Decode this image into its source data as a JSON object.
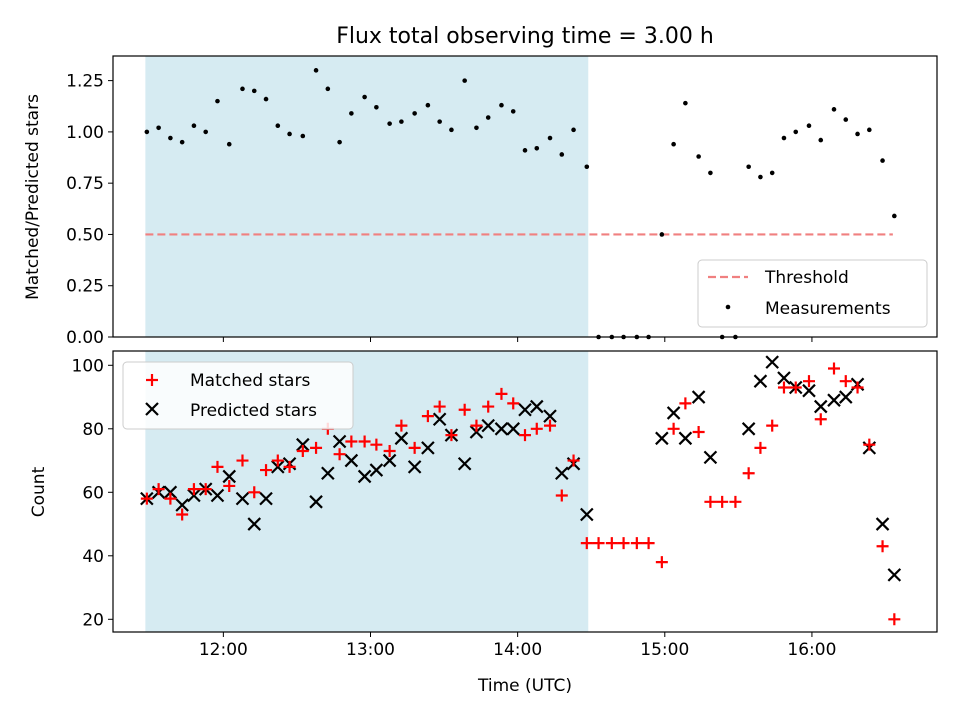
{
  "title": "Flux total observing time = 3.00 h",
  "chart_data": [
    {
      "type": "scatter",
      "ylabel": "Matched/Predicted stars",
      "xlabel": "",
      "xlim_hours": [
        11.25,
        16.85
      ],
      "ylim": [
        0,
        1.37
      ],
      "yticks": [
        0,
        0.25,
        0.5,
        0.75,
        1.0,
        1.25
      ],
      "ytick_labels": [
        "0.00",
        "0.25",
        "0.50",
        "0.75",
        "1.00",
        "1.25"
      ],
      "xticks_hours": [
        12,
        13,
        14,
        15,
        16
      ],
      "shaded_span_hours": [
        11.47,
        14.48
      ],
      "shade_color": "#add8e6",
      "legend_position": "lower right",
      "threshold": {
        "name": "Threshold",
        "value": 0.5,
        "x_range_hours": [
          11.47,
          16.55
        ],
        "color": "#f08080"
      },
      "measurements": {
        "name": "Measurements",
        "color": "#000000",
        "x_hours": [
          11.48,
          11.56,
          11.64,
          11.72,
          11.8,
          11.88,
          11.96,
          12.04,
          12.13,
          12.21,
          12.29,
          12.37,
          12.45,
          12.54,
          12.63,
          12.71,
          12.79,
          12.87,
          12.96,
          13.04,
          13.13,
          13.21,
          13.3,
          13.39,
          13.47,
          13.55,
          13.64,
          13.72,
          13.8,
          13.89,
          13.97,
          14.05,
          14.13,
          14.22,
          14.3,
          14.38,
          14.47,
          14.55,
          14.64,
          14.72,
          14.81,
          14.89,
          14.98,
          15.06,
          15.14,
          15.23,
          15.31,
          15.39,
          15.48,
          15.57,
          15.65,
          15.73,
          15.81,
          15.89,
          15.98,
          16.06,
          16.15,
          16.23,
          16.31,
          16.39,
          16.48,
          16.56
        ],
        "values": [
          1.0,
          1.02,
          0.97,
          0.95,
          1.03,
          1.0,
          1.15,
          0.94,
          1.21,
          1.2,
          1.16,
          1.03,
          0.99,
          0.98,
          1.3,
          1.21,
          0.95,
          1.09,
          1.17,
          1.12,
          1.04,
          1.05,
          1.09,
          1.13,
          1.05,
          1.01,
          1.25,
          1.02,
          1.07,
          1.13,
          1.1,
          0.91,
          0.92,
          0.97,
          0.89,
          1.01,
          0.83,
          0.0,
          0.0,
          0.0,
          0.0,
          0.0,
          0.5,
          0.94,
          1.14,
          0.88,
          0.8,
          0.0,
          0.0,
          0.83,
          0.78,
          0.8,
          0.97,
          1.0,
          1.03,
          0.96,
          1.11,
          1.06,
          0.99,
          1.01,
          0.86,
          0.59
        ]
      }
    },
    {
      "type": "scatter",
      "xlabel": "Time (UTC)",
      "ylabel": "Count",
      "xlim_hours": [
        11.25,
        16.85
      ],
      "ylim": [
        16,
        104.5
      ],
      "yticks": [
        20,
        40,
        60,
        80,
        100
      ],
      "ytick_labels": [
        "20",
        "40",
        "60",
        "80",
        "100"
      ],
      "xticks_hours": [
        12,
        13,
        14,
        15,
        16
      ],
      "xtick_labels": [
        "12:00",
        "13:00",
        "14:00",
        "15:00",
        "16:00"
      ],
      "shaded_span_hours": [
        11.47,
        14.48
      ],
      "shade_color": "#add8e6",
      "legend_position": "upper left",
      "series": [
        {
          "name": "Matched stars",
          "marker": "+",
          "color": "#ff0000",
          "x_hours": [
            11.48,
            11.56,
            11.64,
            11.72,
            11.8,
            11.88,
            11.96,
            12.04,
            12.13,
            12.21,
            12.29,
            12.37,
            12.45,
            12.54,
            12.63,
            12.71,
            12.79,
            12.87,
            12.96,
            13.04,
            13.13,
            13.21,
            13.3,
            13.39,
            13.47,
            13.55,
            13.64,
            13.72,
            13.8,
            13.89,
            13.97,
            14.05,
            14.13,
            14.22,
            14.3,
            14.38,
            14.47,
            14.55,
            14.64,
            14.72,
            14.81,
            14.89,
            14.98,
            15.06,
            15.14,
            15.23,
            15.31,
            15.39,
            15.48,
            15.57,
            15.65,
            15.73,
            15.81,
            15.89,
            15.98,
            16.06,
            16.15,
            16.23,
            16.31,
            16.39,
            16.48,
            16.56
          ],
          "values": [
            58,
            61,
            58,
            53,
            61,
            61,
            68,
            62,
            70,
            60,
            67,
            70,
            68,
            73,
            74,
            80,
            72,
            76,
            76,
            75,
            73,
            81,
            74,
            84,
            87,
            78,
            86,
            81,
            87,
            91,
            88,
            78,
            80,
            81,
            59,
            70,
            44,
            44,
            44,
            44,
            44,
            44,
            38,
            80,
            88,
            79,
            57,
            57,
            57,
            66,
            74,
            81,
            93,
            93,
            95,
            83,
            99,
            95,
            93,
            75,
            43,
            20
          ]
        },
        {
          "name": "Predicted stars",
          "marker": "x",
          "color": "#000000",
          "x_hours": [
            11.48,
            11.56,
            11.64,
            11.72,
            11.8,
            11.88,
            11.96,
            12.04,
            12.13,
            12.21,
            12.29,
            12.37,
            12.45,
            12.54,
            12.63,
            12.71,
            12.79,
            12.87,
            12.96,
            13.04,
            13.13,
            13.21,
            13.3,
            13.39,
            13.47,
            13.55,
            13.64,
            13.72,
            13.8,
            13.89,
            13.97,
            14.05,
            14.13,
            14.22,
            14.3,
            14.38,
            14.47,
            14.98,
            15.06,
            15.14,
            15.23,
            15.31,
            15.57,
            15.65,
            15.73,
            15.81,
            15.89,
            15.98,
            16.06,
            16.15,
            16.23,
            16.31,
            16.39,
            16.48,
            16.56
          ],
          "values": [
            58,
            60,
            60,
            56,
            59,
            61,
            59,
            65,
            58,
            50,
            58,
            68,
            69,
            75,
            57,
            66,
            76,
            70,
            65,
            67,
            70,
            77,
            68,
            74,
            83,
            78,
            69,
            79,
            81,
            80,
            80,
            86,
            87,
            84,
            66,
            69,
            53,
            77,
            85,
            77,
            90,
            71,
            80,
            95,
            101,
            96,
            93,
            92,
            87,
            89,
            90,
            94,
            74,
            50,
            34
          ]
        }
      ]
    }
  ]
}
